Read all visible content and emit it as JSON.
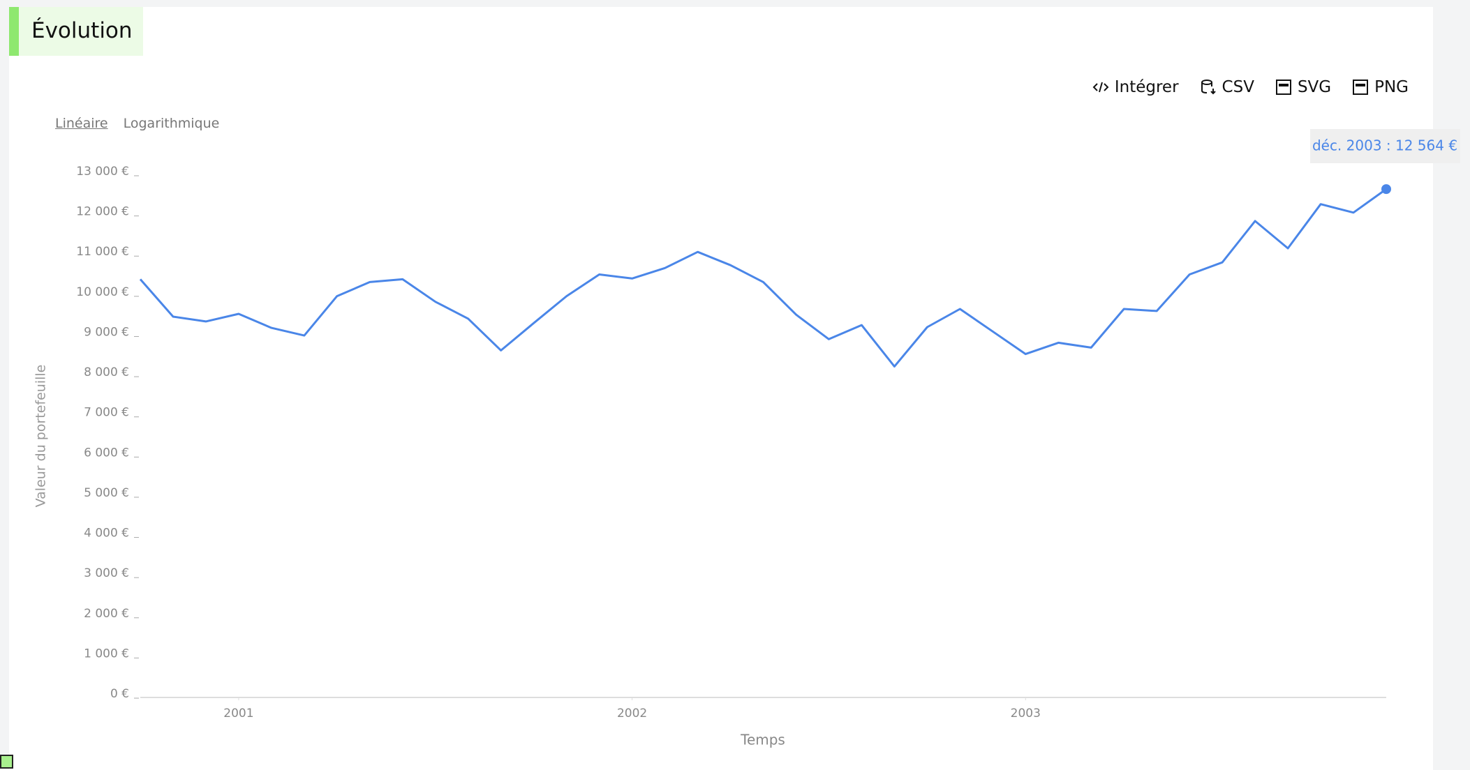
{
  "header": {
    "title": "Évolution"
  },
  "toolbar": {
    "embed": "Intégrer",
    "csv": "CSV",
    "svg": "SVG",
    "png": "PNG"
  },
  "scale_toggle": {
    "linear": "Linéaire",
    "log": "Logarithmique"
  },
  "chart_data": {
    "type": "line",
    "y_label": "Valeur du portefeuille",
    "x_label": "Temps",
    "tooltip": "déc. 2003 : 12 564 €",
    "x": [
      "2000-10",
      "2000-11",
      "2000-12",
      "2001-01",
      "2001-02",
      "2001-03",
      "2001-04",
      "2001-05",
      "2001-06",
      "2001-07",
      "2001-08",
      "2001-09",
      "2001-10",
      "2001-11",
      "2001-12",
      "2002-01",
      "2002-02",
      "2002-03",
      "2002-04",
      "2002-05",
      "2002-06",
      "2002-07",
      "2002-08",
      "2002-09",
      "2002-10",
      "2002-11",
      "2002-12",
      "2003-01",
      "2003-02",
      "2003-03",
      "2003-04",
      "2003-05",
      "2003-06",
      "2003-07",
      "2003-08",
      "2003-09",
      "2003-10",
      "2003-11",
      "2003-12"
    ],
    "series": [
      {
        "name": "Valeur du portefeuille",
        "color": "#4a86e8",
        "values": [
          10320,
          9390,
          9270,
          9460,
          9110,
          8920,
          9900,
          10250,
          10320,
          9760,
          9340,
          8550,
          9230,
          9900,
          10440,
          10340,
          10600,
          11000,
          10670,
          10250,
          9440,
          8830,
          9180,
          8150,
          9130,
          9580,
          9020,
          8460,
          8740,
          8620,
          9580,
          9530,
          10440,
          10740,
          11770,
          11090,
          12190,
          11980,
          12564
        ]
      }
    ],
    "ylim": [
      0,
      13000
    ],
    "yticks": [
      {
        "value": 0,
        "label": "0 €"
      },
      {
        "value": 1000,
        "label": "1 000 €"
      },
      {
        "value": 2000,
        "label": "2 000 €"
      },
      {
        "value": 3000,
        "label": "3 000 €"
      },
      {
        "value": 4000,
        "label": "4 000 €"
      },
      {
        "value": 5000,
        "label": "5 000 €"
      },
      {
        "value": 6000,
        "label": "6 000 €"
      },
      {
        "value": 7000,
        "label": "7 000 €"
      },
      {
        "value": 8000,
        "label": "8 000 €"
      },
      {
        "value": 9000,
        "label": "9 000 €"
      },
      {
        "value": 10000,
        "label": "10 000 €"
      },
      {
        "value": 11000,
        "label": "11 000 €"
      },
      {
        "value": 12000,
        "label": "12 000 €"
      },
      {
        "value": 13000,
        "label": "13 000 €"
      }
    ],
    "xticks": [
      {
        "value": "2001-01",
        "label": "2001"
      },
      {
        "value": "2002-01",
        "label": "2002"
      },
      {
        "value": "2003-01",
        "label": "2003"
      }
    ],
    "grid": false
  }
}
